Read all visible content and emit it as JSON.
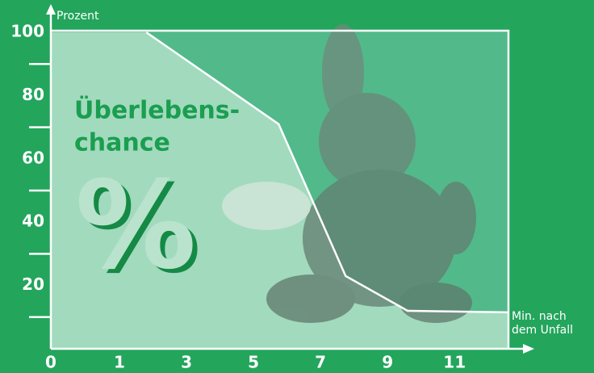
{
  "chart_data": {
    "type": "line",
    "ylabel": "Prozent",
    "xlabel": [
      "Min. nach",
      "dem Unfall"
    ],
    "annotation": [
      "Überlebens-",
      "chance"
    ],
    "symbol": "%",
    "origin_label": "0",
    "xlim": [
      0,
      13.5
    ],
    "xticks": [
      1,
      3,
      5,
      7,
      9,
      11
    ],
    "ylim": [
      0,
      100
    ],
    "yticks": [
      20,
      40,
      60,
      80,
      100
    ],
    "minor_yticks": [
      10,
      30,
      50,
      70,
      90
    ],
    "series": [
      {
        "color": "#ffffff",
        "x": [
          1.8,
          5.75,
          7.75,
          9.6,
          12.6
        ],
        "values": [
          100,
          71,
          23,
          12,
          11.5
        ]
      }
    ]
  }
}
